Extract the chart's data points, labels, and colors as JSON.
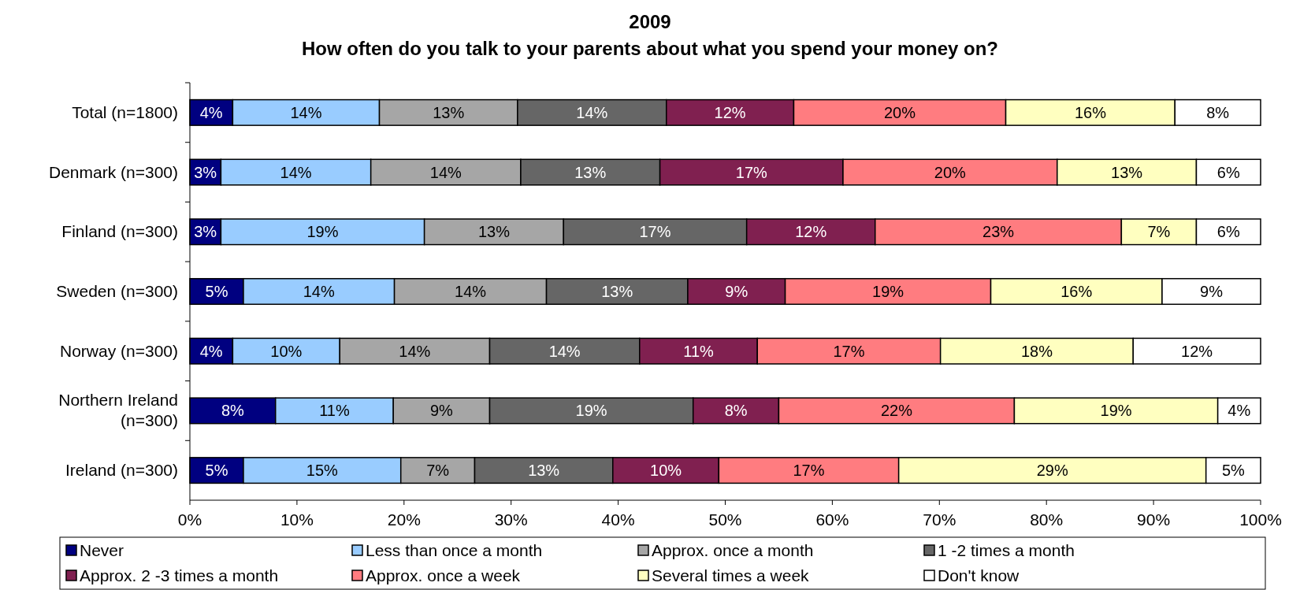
{
  "chart_data": {
    "type": "bar",
    "orientation": "horizontal",
    "stacked": true,
    "title": "2009",
    "subtitle": "How often do you talk to your parents about what you spend your money on?",
    "categories": [
      "Total (n=1800)",
      "Denmark (n=300)",
      "Finland (n=300)",
      "Sweden (n=300)",
      "Norway (n=300)",
      "Northern Ireland (n=300)",
      "Ireland (n=300)"
    ],
    "xlim": [
      0,
      100
    ],
    "xticks": [
      {
        "value": 0,
        "label": "0%"
      },
      {
        "value": 10,
        "label": "10%"
      },
      {
        "value": 20,
        "label": "20%"
      },
      {
        "value": 30,
        "label": "30%"
      },
      {
        "value": 40,
        "label": "40%"
      },
      {
        "value": 50,
        "label": "50%"
      },
      {
        "value": 60,
        "label": "60%"
      },
      {
        "value": 70,
        "label": "70%"
      },
      {
        "value": 80,
        "label": "80%"
      },
      {
        "value": 90,
        "label": "90%"
      },
      {
        "value": 100,
        "label": "100%"
      }
    ],
    "legend": "bottom",
    "grid": false,
    "series": [
      {
        "name": "Never",
        "color": "#000080",
        "values": [
          4.0,
          2.9,
          2.9,
          5.0,
          4.0,
          8,
          5.0
        ],
        "value_labels": [
          "4%",
          "3%",
          "3%",
          "5%",
          "4%",
          "8%",
          "5%"
        ]
      },
      {
        "name": "Less than once a month",
        "color": "#99ccff",
        "values": [
          13.7,
          14.0,
          19.0,
          14.1,
          10.0,
          11,
          14.7
        ],
        "value_labels": [
          "14%",
          "14%",
          "19%",
          "14%",
          "10%",
          "11%",
          "15%"
        ]
      },
      {
        "name": "Approx. once a month",
        "color": "#a6a6a6",
        "values": [
          12.9,
          14.0,
          13.0,
          14.2,
          14.0,
          9,
          6.9
        ],
        "value_labels": [
          "13%",
          "14%",
          "13%",
          "14%",
          "14%",
          "9%",
          "7%"
        ]
      },
      {
        "name": "1 -2 times a month",
        "color": "#666666",
        "values": [
          13.9,
          13.0,
          17.1,
          13.2,
          14.0,
          19,
          12.9
        ],
        "value_labels": [
          "14%",
          "13%",
          "17%",
          "13%",
          "14%",
          "19%",
          "13%"
        ]
      },
      {
        "name": "Approx. 2 -3 times a month",
        "color": "#802050",
        "values": [
          11.9,
          17.1,
          12.0,
          9.1,
          11.0,
          8,
          9.9
        ],
        "value_labels": [
          "12%",
          "17%",
          "12%",
          "9%",
          "11%",
          "8%",
          "10%"
        ]
      },
      {
        "name": "Approx. once a week",
        "color": "#ff7c80",
        "values": [
          19.8,
          20.0,
          23.0,
          19.2,
          17.1,
          22,
          16.8
        ],
        "value_labels": [
          "20%",
          "20%",
          "23%",
          "19%",
          "17%",
          "22%",
          "17%"
        ]
      },
      {
        "name": "Several times a week",
        "color": "#ffffc0",
        "values": [
          15.8,
          13.0,
          7.0,
          16.0,
          18.0,
          19,
          28.7
        ],
        "value_labels": [
          "16%",
          "13%",
          "7%",
          "16%",
          "18%",
          "19%",
          "29%"
        ]
      },
      {
        "name": "Don't know",
        "color": "#ffffff",
        "values": [
          8.0,
          6.0,
          6.0,
          9.2,
          11.9,
          4,
          5.1
        ],
        "value_labels": [
          "8%",
          "6%",
          "6%",
          "9%",
          "12%",
          "4%",
          "5%"
        ]
      }
    ]
  }
}
